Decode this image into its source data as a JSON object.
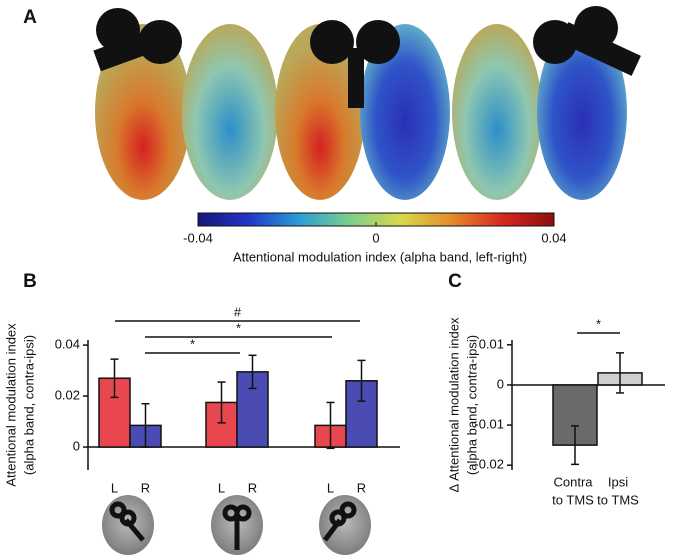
{
  "chart_data": [
    {
      "type": "colorbar",
      "panel_label": "A",
      "xlabel": "Attentional modulation index (alpha band, left-right)",
      "xlim": [
        -0.04,
        0.04
      ],
      "xticks": [
        -0.04,
        0,
        0.04
      ],
      "colors": [
        "#17167a",
        "#2236c8",
        "#2a9fd6",
        "#7fcf8a",
        "#d9d84a",
        "#e58a2c",
        "#d6281f",
        "#8e0d0d"
      ]
    },
    {
      "type": "grouped_bar",
      "panel_label": "B",
      "ylabel": [
        "Attentional modulation index",
        "(alpha band, contra-ipsi)"
      ],
      "categories": [
        null,
        null,
        null
      ],
      "series": [
        {
          "name": "L",
          "color": "#e8474f",
          "values": [
            0.027,
            0.0175,
            0.0085
          ],
          "errors": [
            0.0075,
            0.008,
            0.009
          ]
        },
        {
          "name": "R",
          "color": "#4b4cb3",
          "values": [
            0.0085,
            0.0295,
            0.026
          ],
          "errors": [
            0.0085,
            0.0065,
            0.008
          ]
        }
      ],
      "ylim": [
        -0.009,
        0.042
      ],
      "yticks": [
        0,
        0.02,
        0.04
      ],
      "annotations": [
        "#",
        "*",
        "*"
      ]
    },
    {
      "type": "bar",
      "panel_label": "C",
      "ylabel": [
        "Δ Attentional modulation index",
        "(alpha band, contra-ipsi)"
      ],
      "categories": [
        [
          "Contra",
          "to TMS"
        ],
        [
          "Ipsi",
          "to TMS"
        ]
      ],
      "values": [
        -0.015,
        0.003
      ],
      "errors": [
        0.0048,
        0.005
      ],
      "colors": [
        "#6a6a6a",
        "#cfcfcf"
      ],
      "ylim": [
        -0.0212,
        0.0112
      ],
      "yticks": [
        -0.02,
        -0.01,
        0,
        0.01
      ],
      "annotations": [
        "*"
      ]
    }
  ]
}
